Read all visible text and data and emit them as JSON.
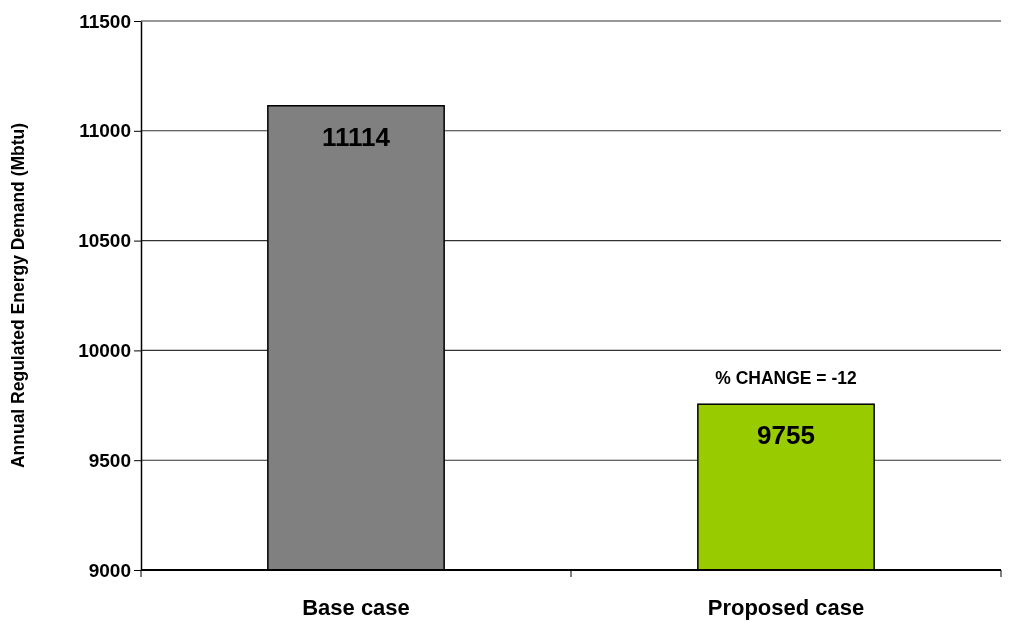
{
  "chart_data": {
    "type": "bar",
    "ylabel": "Annual Regulated Energy Demand (Mbtu)",
    "categories": [
      "Base case",
      "Proposed case"
    ],
    "values": [
      11114,
      9755
    ],
    "colors": [
      "#808080",
      "#99cc00"
    ],
    "ylim": [
      9000,
      11500
    ],
    "yticks": [
      9000,
      9500,
      10000,
      10500,
      11000,
      11500
    ],
    "grid": "y",
    "data_labels": true,
    "annotations": [
      {
        "text": "% CHANGE = -12",
        "x": "Proposed case",
        "y": 9755
      }
    ]
  }
}
